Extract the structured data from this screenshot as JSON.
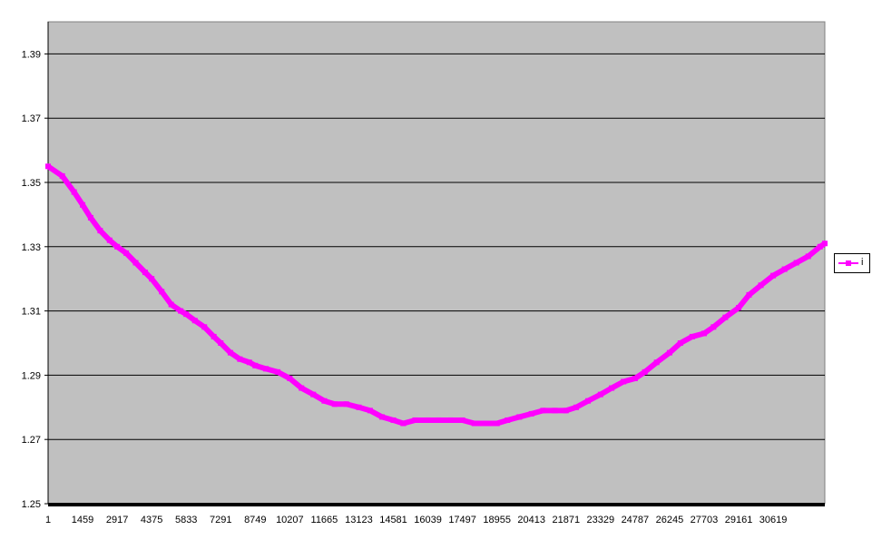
{
  "chart_data": {
    "type": "line",
    "title": "",
    "xlabel": "",
    "ylabel": "",
    "ylim": [
      1.25,
      1.4
    ],
    "xlim": [
      1,
      32800
    ],
    "yticks": [
      "1.25",
      "1.27",
      "1.29",
      "1.31",
      "1.33",
      "1.35",
      "1.37",
      "1.39"
    ],
    "xticks": [
      "1",
      "1459",
      "2917",
      "4375",
      "5833",
      "7291",
      "8749",
      "10207",
      "11665",
      "13123",
      "14581",
      "16039",
      "17497",
      "18955",
      "20413",
      "21871",
      "23329",
      "24787",
      "26245",
      "27703",
      "29161",
      "30619"
    ],
    "grid": true,
    "legend_position": "right",
    "plot_background": "#c0c0c0",
    "series": [
      {
        "name": "i",
        "color": "#ff00ff",
        "x": [
          1,
          600,
          1100,
          1459,
          1800,
          2200,
          2600,
          2917,
          3300,
          3700,
          4100,
          4375,
          4800,
          5200,
          5600,
          5833,
          6200,
          6600,
          7000,
          7291,
          7700,
          8100,
          8500,
          8749,
          9200,
          9700,
          10207,
          10700,
          11200,
          11665,
          12100,
          12600,
          13123,
          13600,
          14100,
          14581,
          15000,
          15500,
          16039,
          16500,
          17000,
          17497,
          18000,
          18500,
          18955,
          19400,
          19900,
          20413,
          20900,
          21400,
          21871,
          22300,
          22800,
          23329,
          23800,
          24300,
          24787,
          25200,
          25700,
          26245,
          26700,
          27200,
          27703,
          28100,
          28600,
          29161,
          29600,
          30100,
          30619,
          31100,
          31600,
          32100,
          32600,
          32800
        ],
        "y": [
          1.355,
          1.352,
          1.347,
          1.343,
          1.339,
          1.335,
          1.332,
          1.33,
          1.328,
          1.325,
          1.322,
          1.32,
          1.316,
          1.312,
          1.31,
          1.309,
          1.307,
          1.305,
          1.302,
          1.3,
          1.297,
          1.295,
          1.294,
          1.293,
          1.292,
          1.291,
          1.289,
          1.286,
          1.284,
          1.282,
          1.281,
          1.281,
          1.28,
          1.279,
          1.277,
          1.276,
          1.275,
          1.276,
          1.276,
          1.276,
          1.276,
          1.276,
          1.275,
          1.275,
          1.275,
          1.276,
          1.277,
          1.278,
          1.279,
          1.279,
          1.279,
          1.28,
          1.282,
          1.284,
          1.286,
          1.288,
          1.289,
          1.291,
          1.294,
          1.297,
          1.3,
          1.302,
          1.303,
          1.305,
          1.308,
          1.311,
          1.315,
          1.318,
          1.321,
          1.323,
          1.325,
          1.327,
          1.33,
          1.331
        ]
      }
    ]
  }
}
